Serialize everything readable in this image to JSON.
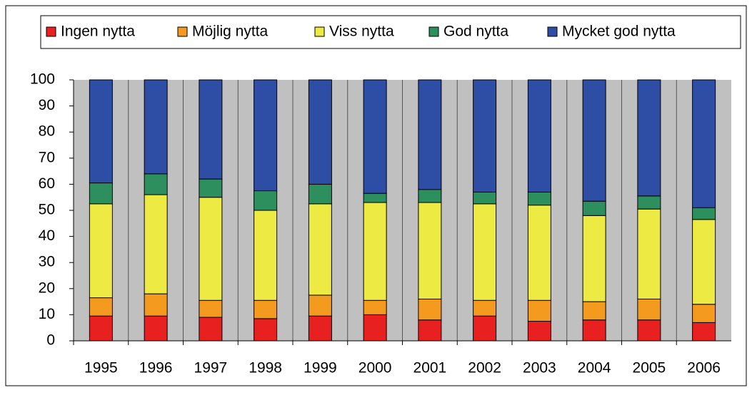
{
  "chart_data": {
    "type": "stacked_bar",
    "categories": [
      "1995",
      "1996",
      "1997",
      "1998",
      "1999",
      "2000",
      "2001",
      "2002",
      "2003",
      "2004",
      "2005",
      "2006"
    ],
    "series": [
      {
        "name": "Ingen nytta",
        "color": "#e82020",
        "values": [
          9.5,
          9.5,
          9,
          8.5,
          9.5,
          10,
          8,
          9.5,
          7.5,
          8,
          8,
          7
        ]
      },
      {
        "name": "Möjlig nytta",
        "color": "#f39a1f",
        "values": [
          7,
          8.5,
          6.5,
          7,
          8,
          5.5,
          8,
          6,
          8,
          7,
          8,
          7
        ]
      },
      {
        "name": "Viss nytta",
        "color": "#eeea44",
        "values": [
          36,
          38,
          39.5,
          34.5,
          35,
          37.5,
          37,
          37,
          36.5,
          33,
          34.5,
          32.5
        ]
      },
      {
        "name": "God nytta",
        "color": "#2e8f5e",
        "values": [
          8,
          8,
          7,
          7.5,
          7.5,
          3.5,
          5,
          4.5,
          5,
          5.5,
          5,
          4.5
        ]
      },
      {
        "name": "Mycket god nytta",
        "color": "#2e4ea6",
        "values": [
          39.5,
          36,
          38,
          42.5,
          40,
          43.5,
          42,
          43,
          43,
          46.5,
          44.5,
          49
        ]
      }
    ],
    "ylim": [
      0,
      100
    ],
    "yticks": [
      0,
      10,
      20,
      30,
      40,
      50,
      60,
      70,
      80,
      90,
      100
    ],
    "legend": "top"
  }
}
